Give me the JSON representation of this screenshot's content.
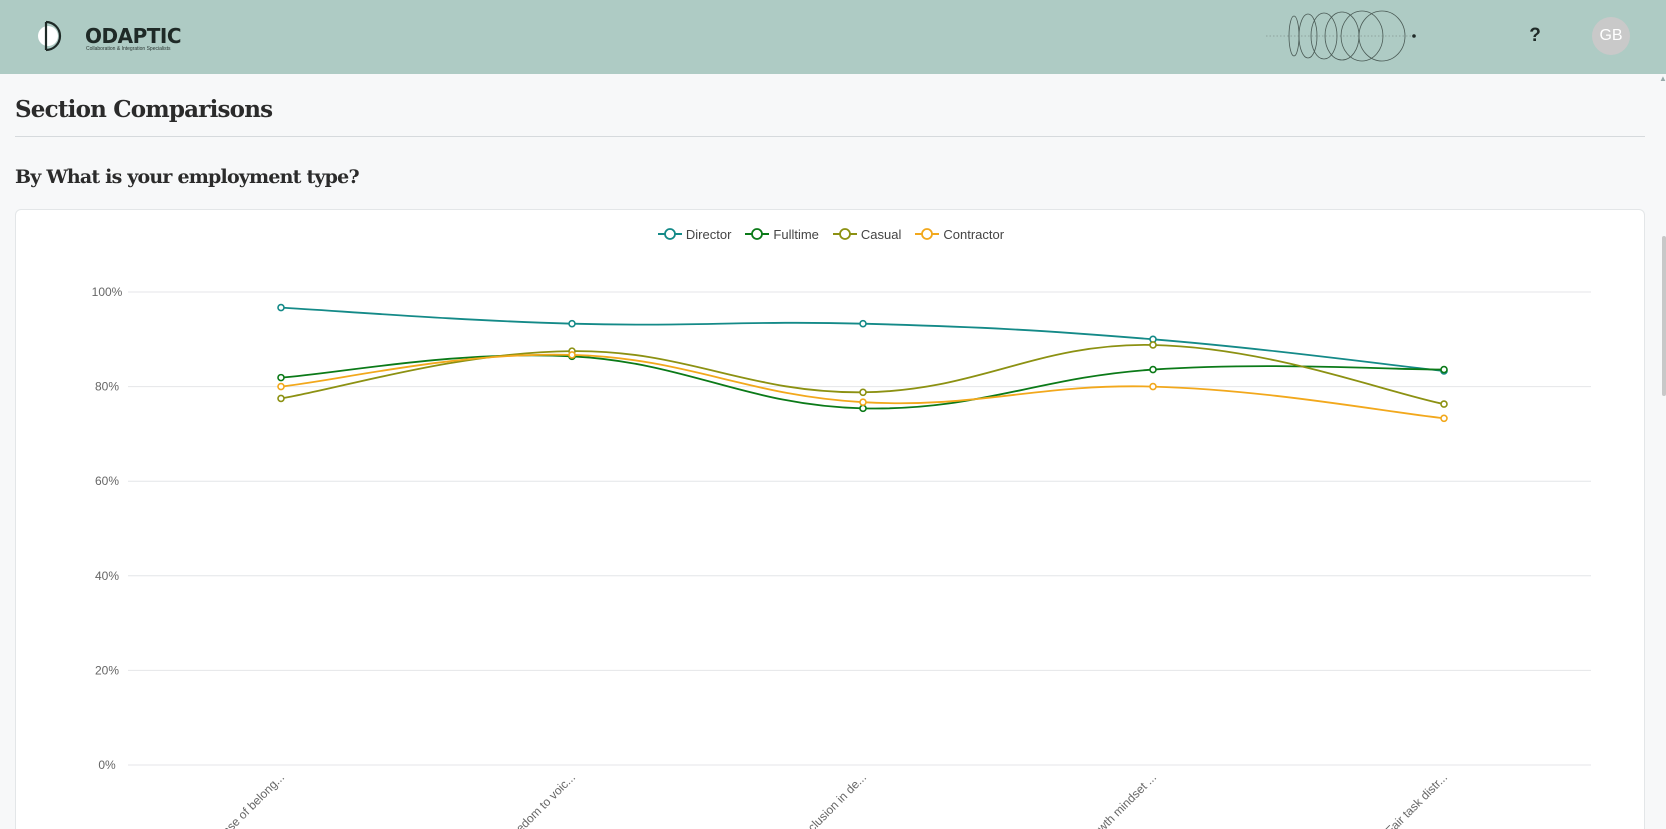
{
  "header": {
    "logo_word": "ODAPTIC",
    "logo_tagline": "Collaboration & Integration Specialists",
    "help_label": "?",
    "user_initials": "GB"
  },
  "page": {
    "section_title": "Section Comparisons",
    "subsection_title": "By What is your employment type?"
  },
  "colors": {
    "header_bg": "#aecbc4",
    "Director": "#148a88",
    "Fulltime": "#0b7a18",
    "Casual": "#8c9112",
    "Contractor": "#f2a81c"
  },
  "chart_data": {
    "type": "line",
    "categories": [
      "...nse of belong...",
      "...eedom to voic...",
      "...nclusion in de...",
      "...owth mindset ...",
      "Fair task distr..."
    ],
    "series": [
      {
        "name": "Director",
        "values": [
          96.7,
          93.3,
          93.3,
          90.0,
          83.3
        ]
      },
      {
        "name": "Fulltime",
        "values": [
          81.9,
          86.4,
          75.4,
          83.6,
          83.6
        ]
      },
      {
        "name": "Casual",
        "values": [
          77.5,
          87.5,
          78.8,
          88.8,
          76.3
        ]
      },
      {
        "name": "Contractor",
        "values": [
          80.0,
          86.7,
          76.7,
          80.0,
          73.3
        ]
      }
    ],
    "ylim": [
      0,
      100
    ],
    "yticks": [
      "0%",
      "20%",
      "40%",
      "60%",
      "80%",
      "100%"
    ],
    "grid": true,
    "legend_position": "top-center"
  }
}
